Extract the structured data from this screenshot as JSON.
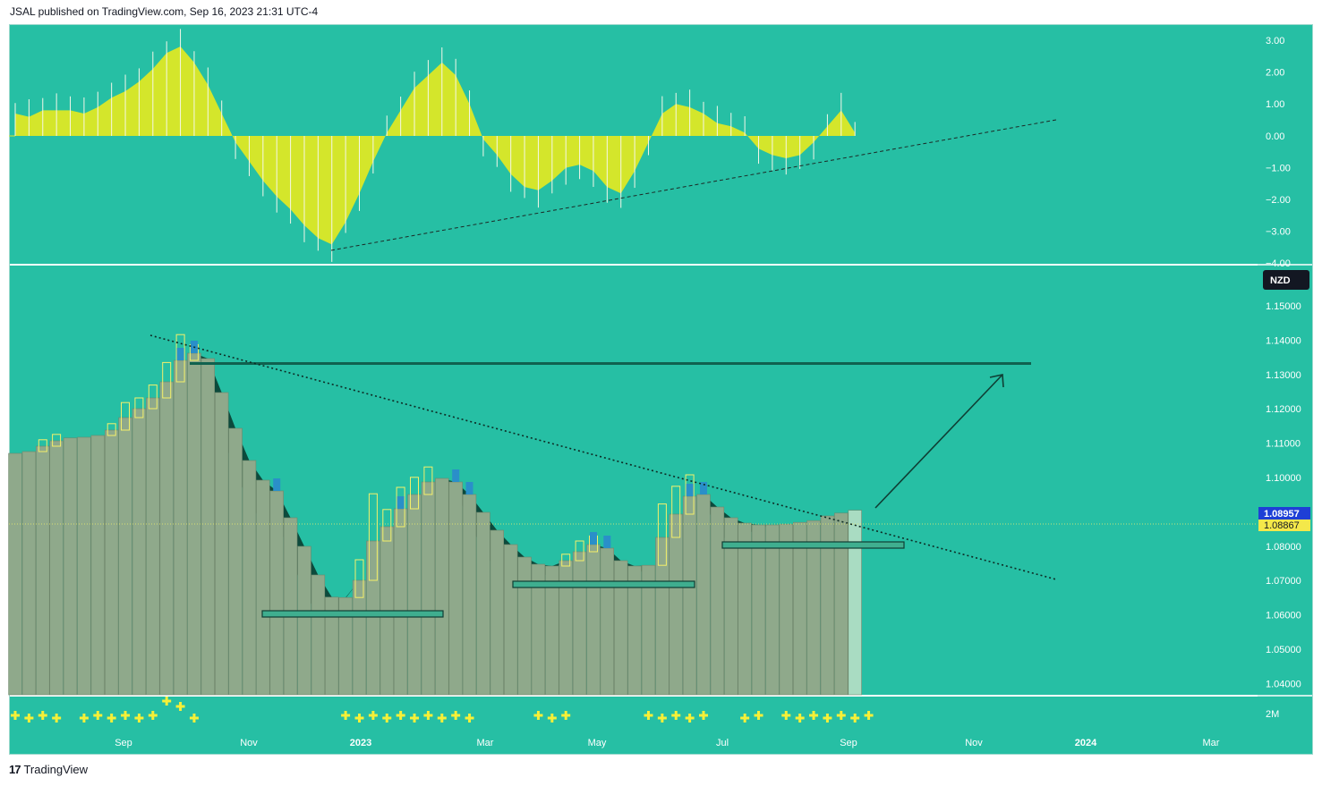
{
  "header": {
    "publisher": "JSAL published on TradingView.com, Sep 16, 2023 21:31 UTC-4"
  },
  "footer": {
    "logo_mark": "17",
    "logo_text": "TradingView"
  },
  "colors": {
    "background": "#26bfa4",
    "panel_border": "#ffffff",
    "column": "#8fa98b",
    "cloud_dark": "#0c4a3c",
    "oscillator_fill": "#d4e62b",
    "hollow_candle": "#f4f06a",
    "plus_marker": "#f6f038",
    "blue_candle": "#2a8fc9",
    "resistance_line": "#10614f",
    "price_last_badge": "#1e3fd6",
    "price_prev_badge": "#f4e84a",
    "currency_badge": "#131722"
  },
  "price_axis": {
    "currency": "NZD",
    "ticks": [
      "1.15000",
      "1.14000",
      "1.13000",
      "1.12000",
      "1.11000",
      "1.10000",
      "1.09000",
      "1.08000",
      "1.07000",
      "1.06000",
      "1.05000",
      "1.04000"
    ],
    "last_price": "1.08957",
    "prev_price": "1.08867"
  },
  "oscillator_axis": {
    "ticks": [
      "3.00",
      "2.00",
      "1.00",
      "0.00",
      "−1.00",
      "−2.00",
      "−3.00",
      "−4.00"
    ]
  },
  "volume_axis": {
    "label": "2M"
  },
  "time_axis": {
    "labels": [
      "Sep",
      "Nov",
      "2023",
      "Mar",
      "May",
      "Jul",
      "Sep",
      "Nov",
      "2024",
      "Mar"
    ]
  },
  "chart_data": {
    "type": "bar",
    "ylim": [
      1.035,
      1.155
    ],
    "oscillator_ylim": [
      -4,
      3.3
    ],
    "series": [
      {
        "values": [
          1.1025,
          1.103,
          1.1045,
          1.106,
          1.1068,
          1.107,
          1.1075,
          1.109,
          1.1125,
          1.115,
          1.118,
          1.1225,
          1.1285,
          1.1305,
          1.129,
          1.1195,
          1.1095,
          1.1005,
          1.095,
          1.092,
          1.0845,
          1.0765,
          1.0685,
          1.0623,
          1.0622,
          1.067,
          1.078,
          1.082,
          1.087,
          1.091,
          1.0945,
          1.0955,
          1.0945,
          1.091,
          1.086,
          1.081,
          1.077,
          1.0735,
          1.0715,
          1.071,
          1.0725,
          1.075,
          1.077,
          1.076,
          1.0725,
          1.071,
          1.0712,
          1.079,
          1.0855,
          1.0905,
          1.091,
          1.0875,
          1.0845,
          1.083,
          1.0825,
          1.0825,
          1.0827,
          1.0832,
          1.0837,
          1.085,
          1.0858,
          1.0866
        ]
      },
      {
        "values": [
          0.7,
          0.6,
          0.8,
          0.8,
          0.8,
          0.7,
          0.9,
          1.2,
          1.4,
          1.7,
          2.1,
          2.6,
          2.8,
          2.3,
          1.6,
          0.7,
          -0.2,
          -0.8,
          -1.4,
          -1.9,
          -2.3,
          -2.8,
          -3.2,
          -3.4,
          -2.7,
          -1.8,
          -0.8,
          0.1,
          0.8,
          1.5,
          1.9,
          2.3,
          1.9,
          1.0,
          -0.1,
          -0.6,
          -1.2,
          -1.6,
          -1.7,
          -1.4,
          -1.0,
          -0.9,
          -1.1,
          -1.6,
          -1.8,
          -1.1,
          -0.2,
          0.7,
          1.0,
          0.9,
          0.7,
          0.4,
          0.3,
          0.1,
          -0.4,
          -0.6,
          -0.7,
          -0.6,
          -0.2,
          0.3,
          0.8,
          0.1
        ]
      }
    ],
    "volume_markers": [
      1,
      1,
      1,
      1,
      0,
      1,
      1,
      1,
      1,
      1,
      1,
      1,
      1,
      1,
      0,
      0,
      0,
      0,
      0,
      0,
      0,
      0,
      0,
      0,
      1,
      1,
      1,
      1,
      1,
      1,
      1,
      1,
      1,
      1,
      0,
      0,
      0,
      0,
      1,
      1,
      1,
      0,
      0,
      0,
      0,
      0,
      1,
      1,
      1,
      1,
      1,
      0,
      0,
      1,
      1,
      0,
      1,
      1,
      1,
      1,
      1,
      1,
      1
    ]
  }
}
